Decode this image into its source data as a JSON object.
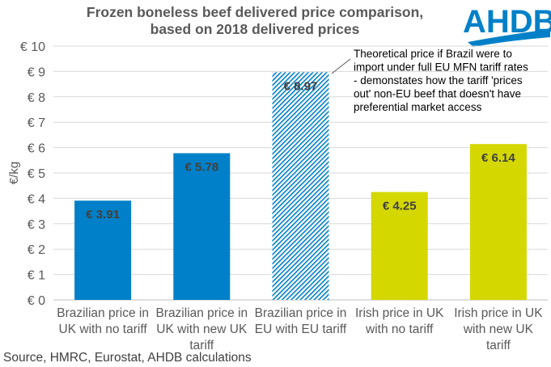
{
  "logo_text": "AHDB",
  "chart_data": {
    "type": "bar",
    "title": [
      "Frozen boneless beef delivered price comparison,",
      "based on 2018 delivered prices"
    ],
    "ylabel": "€/kg",
    "xlabel": "",
    "ylim": [
      0,
      10
    ],
    "yticks": [
      "€ 0",
      "€ 1",
      "€ 2",
      "€ 3",
      "€ 4",
      "€ 5",
      "€ 6",
      "€ 7",
      "€ 8",
      "€ 9",
      "€ 10"
    ],
    "grid": true,
    "categories": [
      [
        "Brazilian price in",
        "UK with no tariff"
      ],
      [
        "Brazilian price in",
        "UK with new UK",
        "tariff"
      ],
      [
        "Brazilian price in",
        "EU with EU tariff"
      ],
      [
        "Irish price in UK",
        "with no tariff"
      ],
      [
        "Irish price in UK",
        "with new UK",
        "tariff"
      ]
    ],
    "values": [
      3.91,
      5.78,
      8.97,
      4.25,
      6.14
    ],
    "labels": [
      "€ 3.91",
      "€ 5.78",
      "€ 8.97",
      "€ 4.25",
      "€ 6.14"
    ],
    "colors": [
      "#0080c8",
      "#0080c8",
      "#0080c8",
      "#d4d800",
      "#d4d800"
    ],
    "hatched": [
      false,
      false,
      true,
      false,
      false
    ],
    "annotation": [
      "Theoretical price if Brazil were to",
      "import under full EU MFN tariff rates",
      "- demonstates how the tariff 'prices",
      "out' non-EU beef that doesn't have",
      "preferential market access"
    ],
    "source": "Source, HMRC, Eurostat, AHDB calculations"
  }
}
